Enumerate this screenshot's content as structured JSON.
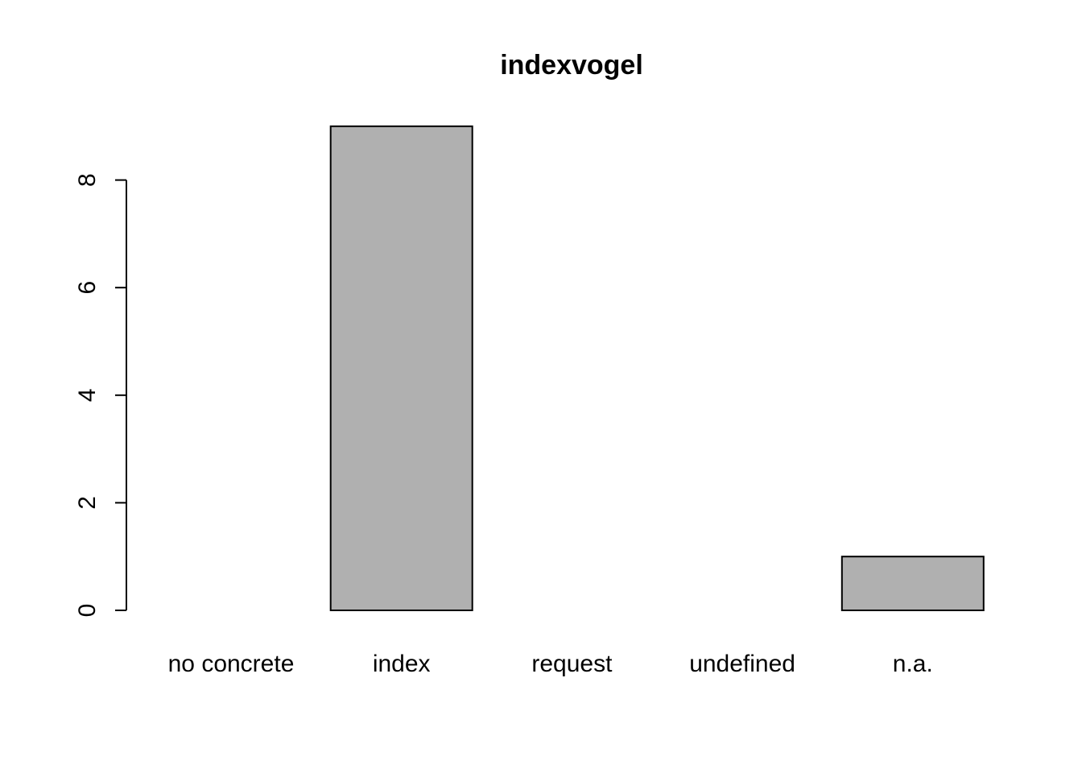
{
  "chart_data": {
    "type": "bar",
    "title": "indexvogel",
    "xlabel": "",
    "ylabel": "",
    "categories": [
      "no concrete",
      "index",
      "request",
      "undefined",
      "n.a."
    ],
    "values": [
      0,
      9,
      0,
      0,
      1
    ],
    "ylim": [
      0,
      9
    ],
    "yticks": [
      0,
      2,
      4,
      6,
      8
    ],
    "grid": false,
    "legend": "none",
    "bar_color": "#b0b0b0",
    "border_color": "#000000"
  }
}
